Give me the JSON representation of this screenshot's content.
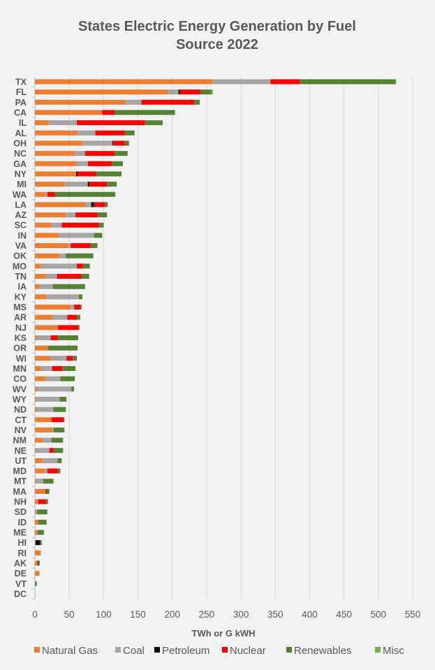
{
  "chart_data": {
    "type": "bar",
    "orientation": "horizontal",
    "stacked": true,
    "title": [
      "States Electric Energy  Generation by Fuel",
      "Source 2022"
    ],
    "xlabel": "TWh or G kWH",
    "ylabel": "",
    "xlim": [
      0,
      550
    ],
    "xticks": [
      0,
      50,
      100,
      150,
      200,
      250,
      300,
      350,
      400,
      450,
      500,
      550
    ],
    "grid": "vertical",
    "legend_position": "bottom",
    "categories": [
      "TX",
      "FL",
      "PA",
      "CA",
      "IL",
      "AL",
      "OH",
      "NC",
      "GA",
      "NY",
      "MI",
      "WA",
      "LA",
      "AZ",
      "SC",
      "IN",
      "VA",
      "OK",
      "MO",
      "TN",
      "IA",
      "KY",
      "MS",
      "AR",
      "NJ",
      "KS",
      "OR",
      "WI",
      "MN",
      "CO",
      "WV",
      "WY",
      "ND",
      "CT",
      "NV",
      "NM",
      "NE",
      "UT",
      "MD",
      "MT",
      "MA",
      "NH",
      "SD",
      "ID",
      "ME",
      "HI",
      "RI",
      "AK",
      "DE",
      "VT",
      "DC"
    ],
    "series": [
      {
        "name": "Natural Gas",
        "color": "#ED7D31",
        "values": [
          259,
          194,
          131,
          98,
          20,
          62,
          70,
          58,
          60,
          60,
          43,
          15,
          74,
          45,
          24,
          35,
          49,
          36,
          8,
          16,
          7,
          17,
          52,
          26,
          34,
          3,
          19,
          23,
          9,
          15,
          3,
          2,
          2,
          24,
          25,
          11,
          1,
          11,
          14,
          1,
          16,
          5,
          1,
          5,
          4,
          0.5,
          8,
          4,
          6,
          0.2,
          0
        ]
      },
      {
        "name": "Coal",
        "color": "#A5A5A5",
        "values": [
          84,
          15,
          24,
          0,
          41,
          26,
          43,
          15,
          17,
          0,
          34,
          3,
          8,
          14,
          15,
          51,
          3,
          9,
          53,
          16,
          19,
          47,
          5,
          21,
          0,
          20,
          0,
          23,
          16,
          22,
          50,
          34,
          25,
          0,
          2,
          13,
          20,
          22,
          4,
          11,
          0,
          0,
          2,
          0,
          0,
          0.5,
          0,
          0,
          0,
          0,
          0
        ]
      },
      {
        "name": "Petroleum",
        "color": "#000000",
        "values": [
          0,
          2,
          0,
          0,
          0,
          0,
          1,
          0,
          0,
          2,
          2,
          0,
          4,
          0,
          0,
          0,
          0,
          0,
          0,
          0,
          0,
          0,
          0,
          0,
          0,
          0,
          0,
          0,
          0,
          0,
          0,
          0,
          0,
          0,
          0,
          0,
          0,
          0,
          0,
          0,
          1,
          0.4,
          0,
          0,
          0,
          6.5,
          0,
          1,
          0,
          0,
          0
        ]
      },
      {
        "name": "Nuclear",
        "color": "#FF0000",
        "values": [
          43,
          30,
          77,
          18,
          99,
          43,
          17,
          43,
          35,
          27,
          26,
          11,
          16,
          32,
          54,
          0,
          29,
          0,
          9,
          36,
          0,
          0,
          9,
          14,
          29,
          10,
          0,
          9,
          15,
          0,
          0,
          0,
          0,
          18,
          0,
          0,
          6,
          0,
          15,
          0,
          0,
          10.6,
          0,
          0,
          0,
          0,
          0,
          0,
          0,
          0,
          0
        ]
      },
      {
        "name": "Renewables",
        "color": "#548235",
        "values": [
          139,
          16,
          8,
          88,
          26,
          14,
          6,
          19,
          16,
          37,
          14,
          88,
          4,
          14,
          7,
          12,
          10,
          40,
          10,
          11,
          47,
          5,
          2,
          5,
          2,
          30,
          43,
          6,
          19,
          21,
          4,
          10,
          18,
          1,
          16,
          17,
          14,
          6,
          4,
          15,
          4,
          3,
          15,
          12,
          9,
          2.5,
          0.5,
          2,
          0.5,
          2.5,
          0.2
        ]
      },
      {
        "name": "Misc",
        "color": "#70AD47",
        "values": [
          1,
          2,
          0,
          0,
          0,
          0,
          0,
          0,
          0,
          0,
          0,
          0,
          0,
          0,
          0,
          0,
          0,
          0,
          0,
          0,
          0,
          0,
          0,
          0,
          0,
          0,
          0,
          0,
          0,
          0,
          0,
          0,
          0,
          0,
          0,
          0,
          0,
          0,
          0,
          0,
          0,
          0,
          0,
          0,
          0,
          0,
          0,
          0,
          0,
          0,
          0
        ]
      }
    ]
  },
  "colors": {
    "background": "#F2F2F2",
    "gridline": "#D9D9D9",
    "text": "#595959"
  }
}
